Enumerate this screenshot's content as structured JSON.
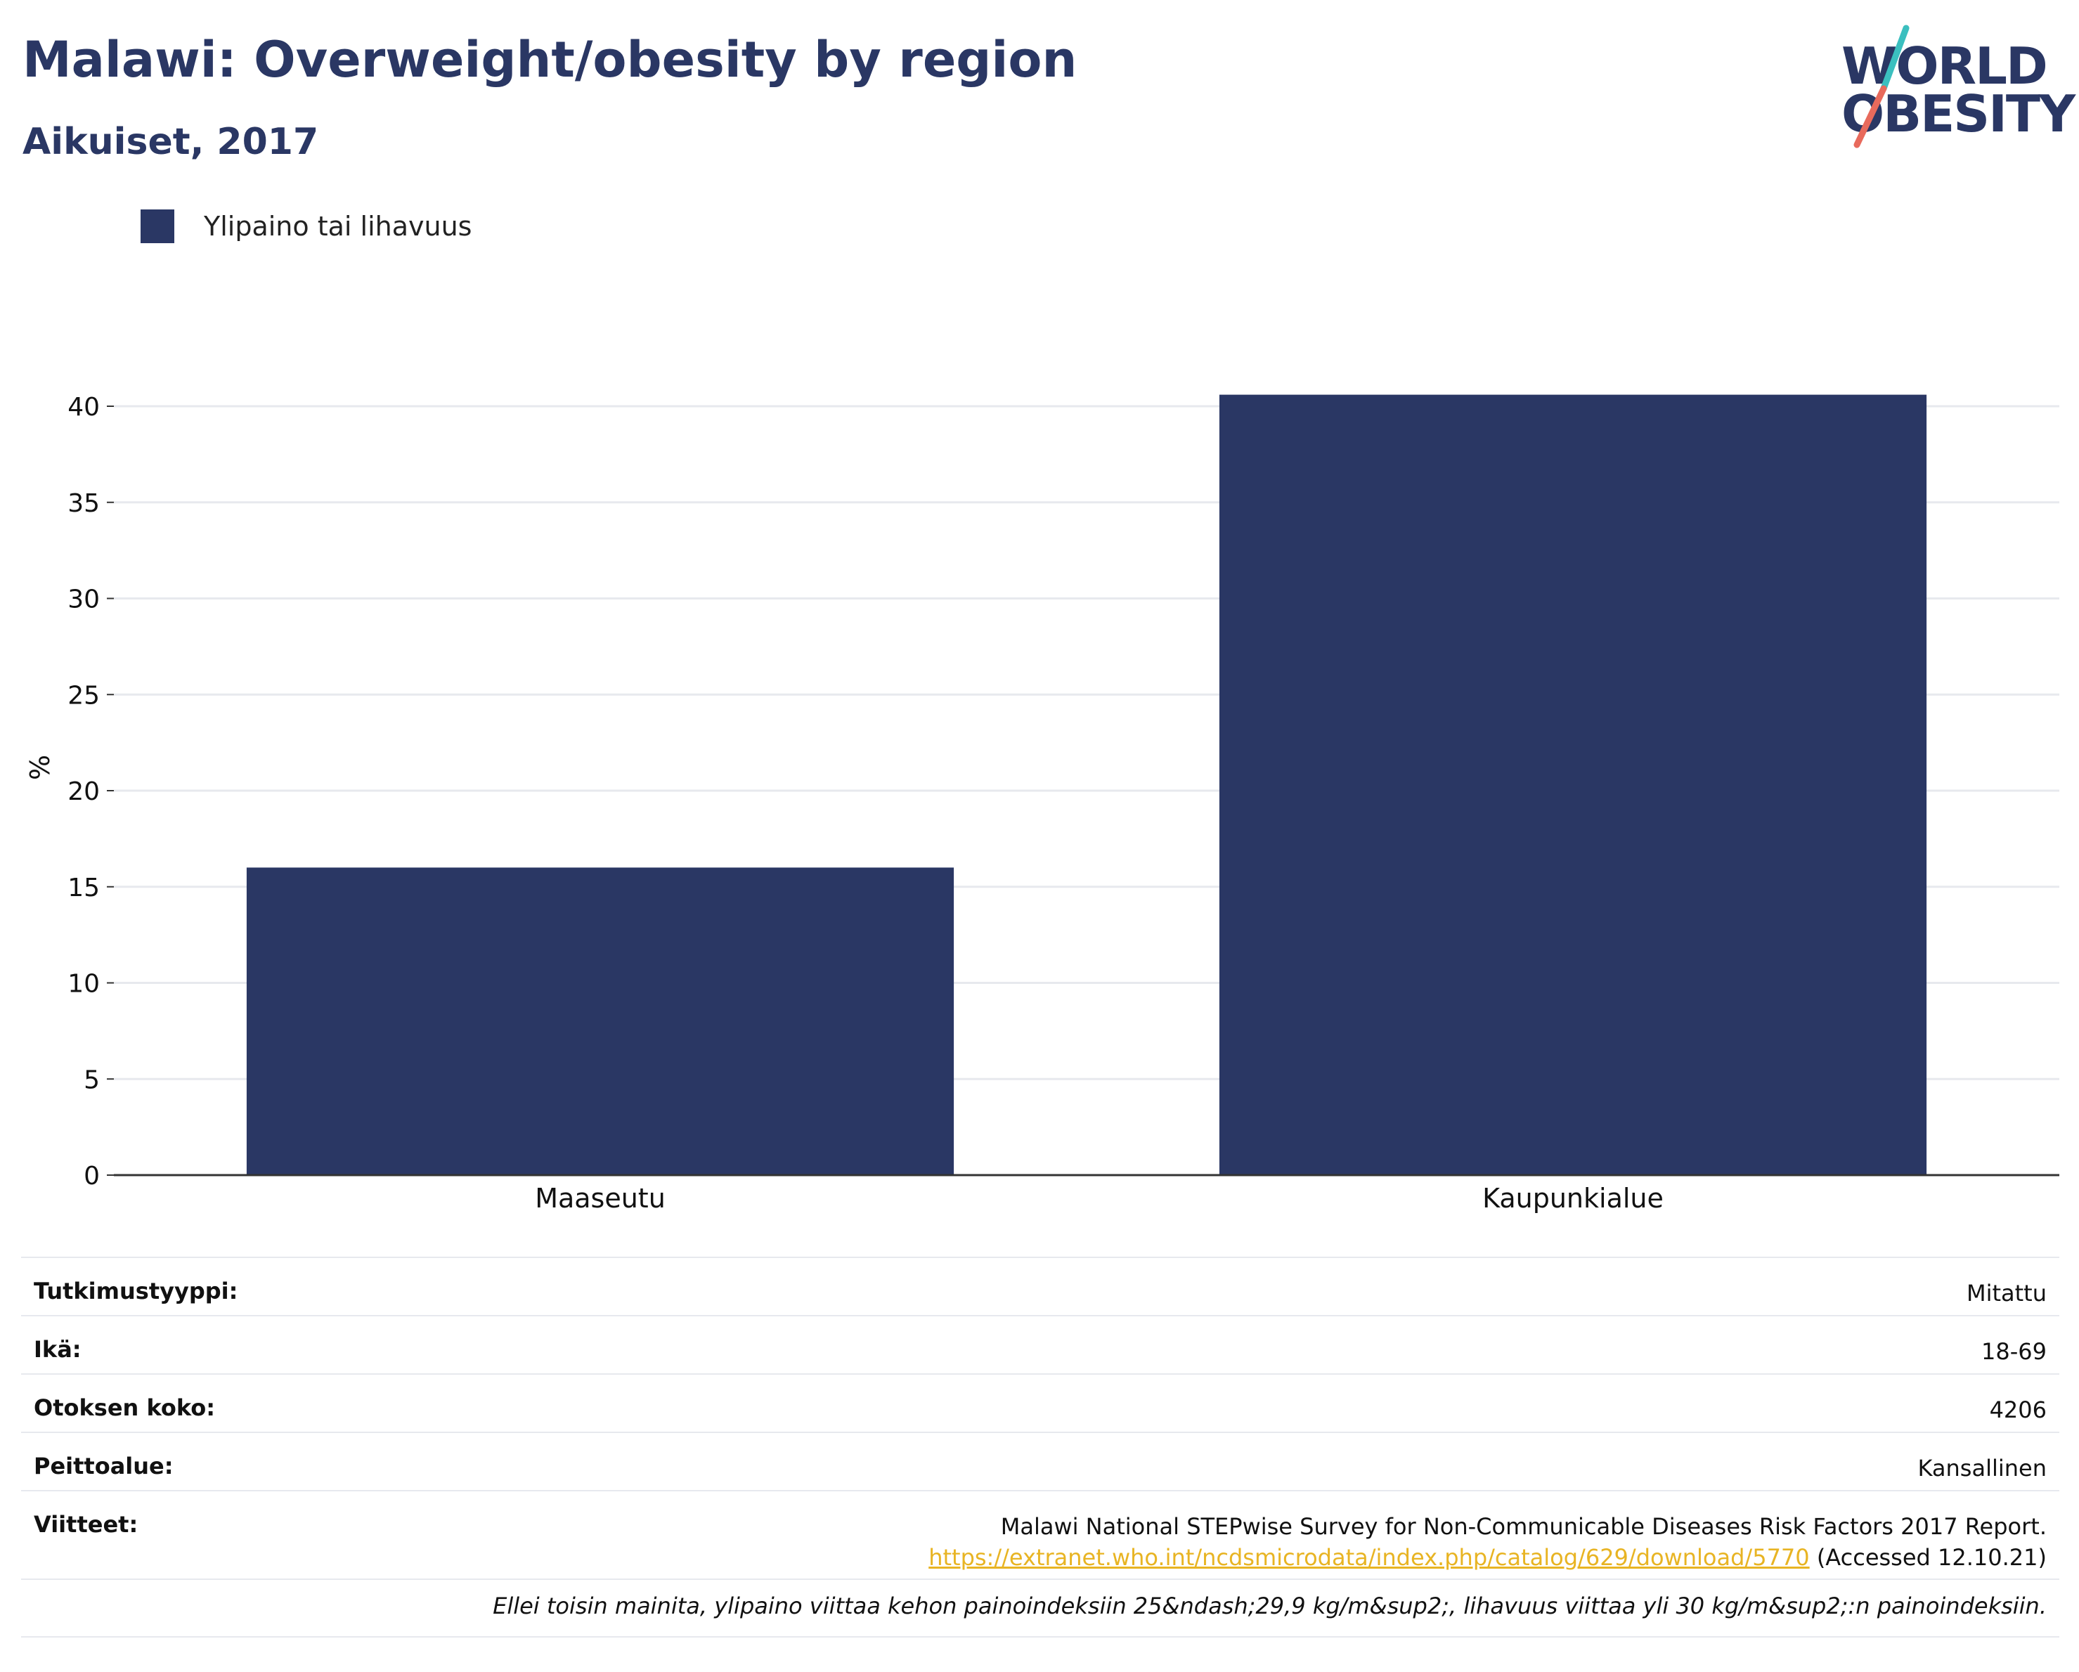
{
  "header": {
    "title": "Malawi: Overweight/obesity by region",
    "subtitle": "Aikuiset, 2017"
  },
  "logo": {
    "line1": "WORLD",
    "line2": "OBESITY",
    "slash_colors": [
      "#3bbfbf",
      "#e86a5c"
    ]
  },
  "legend": {
    "label": "Ylipaino tai lihavuus",
    "color": "#2a3764"
  },
  "chart_data": {
    "type": "bar",
    "categories": [
      "Maaseutu",
      "Kaupunkialue"
    ],
    "series": [
      {
        "name": "Ylipaino tai lihavuus",
        "values": [
          16.0,
          40.6
        ],
        "color": "#2a3764"
      }
    ],
    "xlabel": "",
    "ylabel": "%",
    "ylim": [
      0,
      43
    ],
    "yticks": [
      0,
      5,
      10,
      15,
      20,
      25,
      30,
      35,
      40
    ],
    "grid": true,
    "legend_position": "top-left"
  },
  "info": {
    "study_type_label": "Tutkimustyyppi:",
    "study_type_value": "Mitattu",
    "age_label": "Ikä:",
    "age_value": "18-69",
    "sample_label": "Otoksen koko:",
    "sample_value": "4206",
    "coverage_label": "Peittoalue:",
    "coverage_value": "Kansallinen",
    "references_label": "Viitteet:",
    "reference_text": "Malawi National STEPwise Survey for Non-Communicable Diseases Risk Factors 2017 Report.",
    "reference_url": "https://extranet.who.int/ncdsmicrodata/index.php/catalog/629/download/5770",
    "reference_accessed": "(Accessed 12.10.21)"
  },
  "footnote": "Ellei toisin mainita, ylipaino viittaa kehon painoindeksiin 25&ndash;29,9 kg/m&sup2;, lihavuus viittaa yli 30 kg/m&sup2;:n painoindeksiin."
}
